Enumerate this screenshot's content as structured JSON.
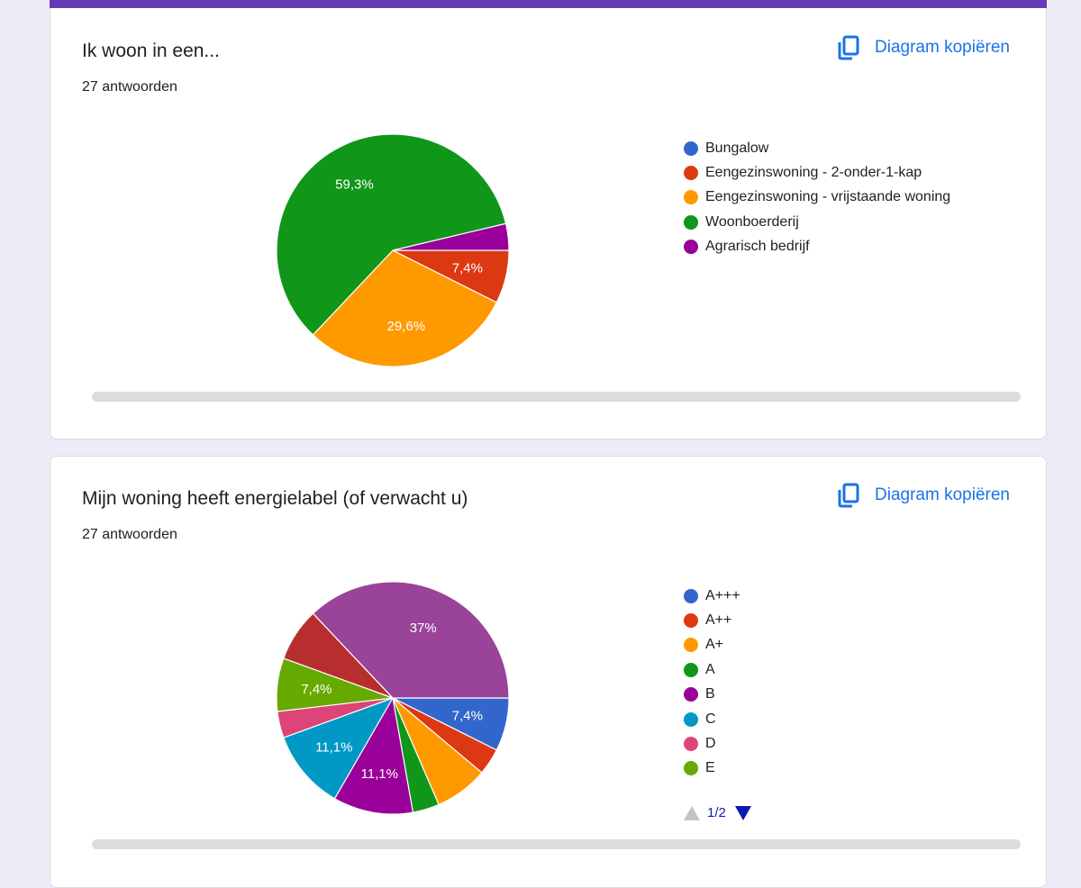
{
  "copy_label": "Diagram kopiëren",
  "copy_icon": "copy-icon",
  "cards": [
    {
      "title": "Ik woon in een...",
      "responses": "27 antwoorden"
    },
    {
      "title": "Mijn woning heeft energielabel (of verwacht u)",
      "responses": "27 antwoorden",
      "pager": {
        "text": "1/2",
        "prev_icon": "triangle-up-icon",
        "next_icon": "triangle-down-icon"
      }
    }
  ],
  "chart_data": [
    {
      "type": "pie",
      "title": "Ik woon in een...",
      "total": 27,
      "legend_position": "right",
      "slices": [
        {
          "label": "Bungalow",
          "count": 0,
          "percent": 0,
          "color": "#3366cc",
          "shown_label": ""
        },
        {
          "label": "Eengezinswoning - 2-onder-1-kap",
          "count": 2,
          "percent": 7.4,
          "color": "#dc3912",
          "shown_label": "7,4%"
        },
        {
          "label": "Eengezinswoning - vrijstaande woning",
          "count": 8,
          "percent": 29.6,
          "color": "#ff9900",
          "shown_label": "29,6%"
        },
        {
          "label": "Woonboerderij",
          "count": 16,
          "percent": 59.3,
          "color": "#109618",
          "shown_label": "59,3%"
        },
        {
          "label": "Agrarisch bedrijf",
          "count": 1,
          "percent": 3.7,
          "color": "#990099",
          "shown_label": ""
        }
      ]
    },
    {
      "type": "pie",
      "title": "Mijn woning heeft energielabel (of verwacht u)",
      "total": 27,
      "legend_position": "right",
      "legend_page": "1/2",
      "slices": [
        {
          "label": "A+++",
          "count": 2,
          "percent": 7.4,
          "color": "#3366cc",
          "shown_label": "7,4%",
          "in_legend": true
        },
        {
          "label": "A++",
          "count": 1,
          "percent": 3.7,
          "color": "#dc3912",
          "shown_label": "",
          "in_legend": true
        },
        {
          "label": "A+",
          "count": 2,
          "percent": 7.4,
          "color": "#ff9900",
          "shown_label": "",
          "in_legend": true
        },
        {
          "label": "A",
          "count": 1,
          "percent": 3.7,
          "color": "#109618",
          "shown_label": "",
          "in_legend": true
        },
        {
          "label": "B",
          "count": 3,
          "percent": 11.1,
          "color": "#990099",
          "shown_label": "11,1%",
          "in_legend": true
        },
        {
          "label": "C",
          "count": 3,
          "percent": 11.1,
          "color": "#0099c6",
          "shown_label": "11,1%",
          "in_legend": true
        },
        {
          "label": "D",
          "count": 1,
          "percent": 3.7,
          "color": "#dd4477",
          "shown_label": "",
          "in_legend": true
        },
        {
          "label": "E",
          "count": 2,
          "percent": 7.4,
          "color": "#66aa00",
          "shown_label": "7,4%",
          "in_legend": true
        },
        {
          "label": "",
          "count": 2,
          "percent": 7.4,
          "color": "#b82e2e",
          "shown_label": "",
          "in_legend": false
        },
        {
          "label": "",
          "count": 10,
          "percent": 37,
          "color": "#994499",
          "shown_label": "37%",
          "in_legend": false
        }
      ]
    }
  ]
}
